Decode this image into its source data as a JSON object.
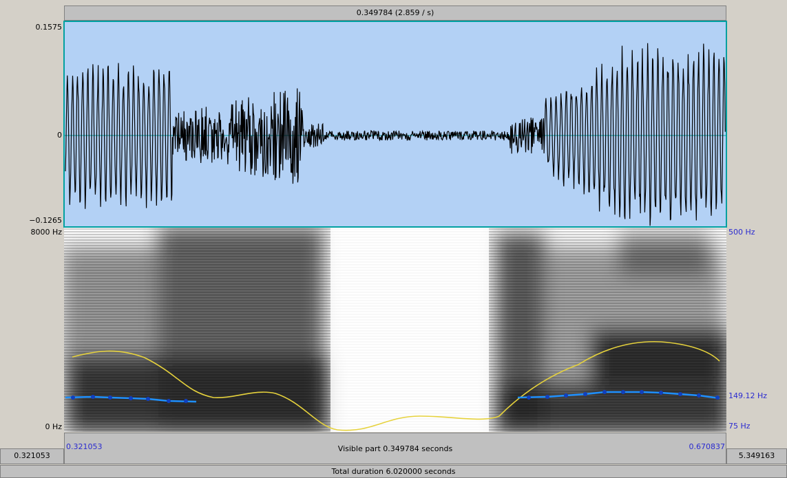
{
  "header": {
    "selection": "0.349784 (2.859 / s)"
  },
  "waveform": {
    "max": "0.1575",
    "zero": "0",
    "min": "−0.1265"
  },
  "spectrogram": {
    "top": "8000 Hz",
    "bottom": "0 Hz"
  },
  "pitch": {
    "top": "500 Hz",
    "current": "149.12 Hz",
    "bottom": "75 Hz"
  },
  "footer": {
    "window_start": "0.321053",
    "window_end": "0.670837",
    "visible": "Visible part 0.349784 seconds",
    "before": "0.321053",
    "after": "5.349163",
    "total": "Total duration 6.020000 seconds"
  }
}
